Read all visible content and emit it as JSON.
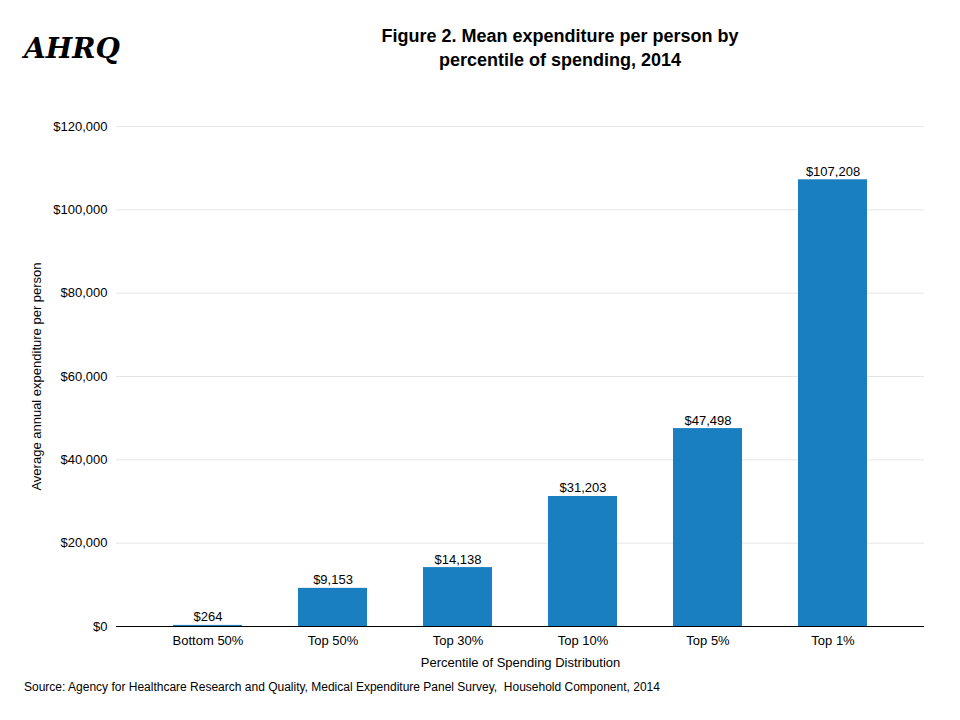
{
  "chart_data": {
    "type": "bar",
    "title": "Figure 2. Mean expenditure per person by\npercentile of spending, 2014",
    "annotations": [
      "AHRQ"
    ],
    "source": "Source: Agency for Healthcare Research and Quality, Medical Expenditure Panel Survey,  Household Component, 2014",
    "xlabel": "Percentile of Spending Distribution",
    "ylabel": "Average annual expenditure per person",
    "categories": [
      "Bottom 50%",
      "Top 50%",
      "Top 30%",
      "Top 10%",
      "Top 5%",
      "Top 1%"
    ],
    "values": [
      264,
      9153,
      14138,
      31203,
      47498,
      107208
    ],
    "value_labels": [
      "$264",
      "$9,153",
      "$14,138",
      "$31,203",
      "$47,498",
      "$107,208"
    ],
    "data_labels": true,
    "color": "#1a7fc1",
    "ylim": [
      0,
      120000
    ],
    "yticks": [
      {
        "value": 0,
        "label": "$0"
      },
      {
        "value": 20000,
        "label": "$20,000"
      },
      {
        "value": 40000,
        "label": "$40,000"
      },
      {
        "value": 60000,
        "label": "$60,000"
      },
      {
        "value": 80000,
        "label": "$80,000"
      },
      {
        "value": 100000,
        "label": "$100,000"
      },
      {
        "value": 120000,
        "label": "$120,000"
      }
    ],
    "grid": true
  }
}
